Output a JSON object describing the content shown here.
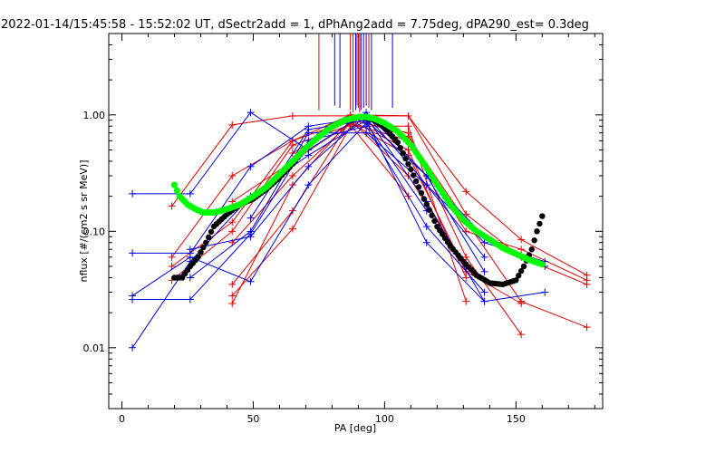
{
  "chart_data": {
    "type": "line",
    "title": "2022-01-14/15:45:58 - 15:52:02 UT, dSectr2add = 1, dPhAng2add = 7.75deg, dPA290_est=   0.3deg",
    "xlabel": "PA [deg]",
    "ylabel": "nflux [#/(cm2 s sr MeV)]",
    "xlim": [
      -5,
      183
    ],
    "ylim": [
      0.003,
      5.0
    ],
    "yscale": "log",
    "x_ticks": [
      0,
      50,
      100,
      150
    ],
    "x_tick_labels": [
      "0",
      "50",
      "100",
      "150"
    ],
    "y_ticks": [
      0.01,
      0.1,
      1.0
    ],
    "y_tick_labels": [
      "0.01",
      "0.10",
      "1.00"
    ],
    "grid": false,
    "colors": {
      "red": "#e00000",
      "blue": "#0000e0",
      "green": "#00ff00",
      "black": "#000000"
    },
    "series": [
      {
        "color": "red",
        "marker": "plus",
        "x": [
          19,
          42,
          65,
          87,
          109,
          131,
          152,
          177
        ],
        "y": [
          0.165,
          0.82,
          0.98,
          0.98,
          0.98,
          0.22,
          0.085,
          0.042
        ]
      },
      {
        "color": "red",
        "marker": "plus",
        "x": [
          19,
          42,
          65,
          87,
          109,
          131,
          152,
          177
        ],
        "y": [
          0.06,
          0.3,
          0.6,
          1.0,
          0.98,
          0.14,
          0.06,
          0.035
        ]
      },
      {
        "color": "red",
        "marker": "plus",
        "x": [
          42,
          65,
          87,
          109,
          131,
          152
        ],
        "y": [
          0.035,
          0.15,
          0.9,
          0.7,
          0.06,
          0.013
        ]
      },
      {
        "color": "red",
        "marker": "plus",
        "x": [
          42,
          65,
          87,
          109,
          131
        ],
        "y": [
          0.028,
          0.105,
          0.8,
          0.8,
          0.025
        ]
      },
      {
        "color": "red",
        "marker": "plus",
        "x": [
          42,
          65,
          87,
          109,
          131
        ],
        "y": [
          0.024,
          0.25,
          0.9,
          0.5,
          0.04
        ]
      },
      {
        "color": "red",
        "marker": "plus",
        "x": [
          65,
          87,
          109,
          152,
          177
        ],
        "y": [
          0.47,
          0.95,
          0.65,
          0.025,
          0.015
        ]
      },
      {
        "color": "red",
        "marker": "plus",
        "x": [
          42,
          65,
          87,
          109,
          131,
          152
        ],
        "y": [
          0.08,
          0.3,
          0.85,
          0.45,
          0.045,
          0.024
        ]
      },
      {
        "color": "red",
        "marker": "plus",
        "x": [
          19,
          42,
          65,
          87,
          109,
          131
        ],
        "y": [
          0.05,
          0.12,
          0.6,
          0.9,
          0.3,
          0.05
        ]
      },
      {
        "color": "red",
        "marker": "plus",
        "x": [
          42,
          65,
          87,
          109,
          131,
          152,
          177
        ],
        "y": [
          0.18,
          0.4,
          0.85,
          0.6,
          0.1,
          0.07,
          0.038
        ]
      },
      {
        "color": "red",
        "marker": "plus",
        "x": [
          19,
          42,
          65,
          87,
          109
        ],
        "y": [
          0.038,
          0.1,
          0.55,
          0.82,
          0.2
        ]
      },
      {
        "color": "blue",
        "marker": "plus",
        "x": [
          4,
          26,
          49,
          71,
          93,
          116,
          138,
          161
        ],
        "y": [
          0.21,
          0.21,
          1.05,
          0.5,
          1.05,
          0.3,
          0.09,
          0.05
        ]
      },
      {
        "color": "blue",
        "marker": "plus",
        "x": [
          4,
          26,
          49,
          71,
          93,
          116,
          138,
          161
        ],
        "y": [
          0.065,
          0.065,
          0.36,
          0.8,
          0.95,
          0.18,
          0.025,
          0.03
        ]
      },
      {
        "color": "blue",
        "marker": "plus",
        "x": [
          4,
          26,
          49,
          71,
          93,
          116,
          138
        ],
        "y": [
          0.026,
          0.026,
          0.095,
          0.6,
          0.8,
          0.11,
          0.03
        ]
      },
      {
        "color": "blue",
        "marker": "plus",
        "x": [
          4,
          26,
          49,
          71,
          93,
          116,
          138
        ],
        "y": [
          0.01,
          0.055,
          0.2,
          0.45,
          0.9,
          0.08,
          0.025
        ]
      },
      {
        "color": "blue",
        "marker": "plus",
        "x": [
          4,
          26,
          49,
          71,
          93,
          116
        ],
        "y": [
          0.028,
          0.06,
          0.037,
          0.25,
          0.85,
          0.15
        ]
      },
      {
        "color": "blue",
        "marker": "plus",
        "x": [
          26,
          49,
          71,
          93,
          116,
          138
        ],
        "y": [
          0.07,
          0.09,
          0.36,
          1.0,
          0.25,
          0.06
        ]
      },
      {
        "color": "blue",
        "marker": "plus",
        "x": [
          49,
          71,
          93,
          116,
          138
        ],
        "y": [
          0.13,
          0.75,
          0.9,
          0.3,
          0.045
        ]
      },
      {
        "color": "blue",
        "marker": "plus",
        "x": [
          26,
          49,
          71,
          93,
          116,
          138,
          161
        ],
        "y": [
          0.04,
          0.1,
          0.7,
          0.7,
          0.25,
          0.08,
          0.055
        ]
      }
    ],
    "green_curve": {
      "color": "green",
      "x": [
        20,
        22,
        25,
        28,
        31,
        35,
        40,
        45,
        50,
        55,
        60,
        65,
        70,
        75,
        80,
        85,
        90,
        93,
        96,
        100,
        105,
        110,
        115,
        120,
        125,
        130,
        135,
        140,
        145,
        150,
        155,
        160
      ],
      "y": [
        0.25,
        0.2,
        0.17,
        0.155,
        0.145,
        0.145,
        0.155,
        0.17,
        0.2,
        0.24,
        0.31,
        0.4,
        0.52,
        0.65,
        0.79,
        0.9,
        0.96,
        0.96,
        0.93,
        0.85,
        0.72,
        0.55,
        0.38,
        0.25,
        0.17,
        0.125,
        0.1,
        0.085,
        0.072,
        0.064,
        0.057,
        0.052
      ]
    },
    "black_curve": {
      "color": "black",
      "x": [
        20,
        23,
        26,
        29,
        32,
        35,
        40,
        45,
        50,
        55,
        60,
        65,
        70,
        75,
        80,
        85,
        90,
        93,
        96,
        100,
        105,
        110,
        115,
        120,
        125,
        130,
        135,
        140,
        145,
        150,
        153,
        156,
        158,
        160
      ],
      "y": [
        0.04,
        0.04,
        0.05,
        0.06,
        0.08,
        0.11,
        0.14,
        0.17,
        0.19,
        0.23,
        0.29,
        0.38,
        0.52,
        0.66,
        0.8,
        0.91,
        0.96,
        0.95,
        0.9,
        0.78,
        0.58,
        0.34,
        0.19,
        0.11,
        0.075,
        0.055,
        0.042,
        0.036,
        0.035,
        0.038,
        0.05,
        0.07,
        0.1,
        0.135
      ]
    },
    "vertical_ticks": {
      "top_y": 5.0,
      "lines": [
        {
          "x": 75,
          "color": "red",
          "bottom_y": 1.1
        },
        {
          "x": 81,
          "color": "blue",
          "bottom_y": 1.2
        },
        {
          "x": 83,
          "color": "blue",
          "bottom_y": 1.15
        },
        {
          "x": 87,
          "color": "red",
          "bottom_y": 1.1
        },
        {
          "x": 88,
          "color": "red",
          "bottom_y": 1.05
        },
        {
          "x": 89,
          "color": "blue",
          "bottom_y": 1.1
        },
        {
          "x": 89.5,
          "color": "red",
          "bottom_y": 1.2
        },
        {
          "x": 90,
          "color": "red",
          "bottom_y": 1.15
        },
        {
          "x": 90.5,
          "color": "red",
          "bottom_y": 1.05
        },
        {
          "x": 91,
          "color": "blue",
          "bottom_y": 1.1
        },
        {
          "x": 92,
          "color": "blue",
          "bottom_y": 1.15
        },
        {
          "x": 93,
          "color": "blue",
          "bottom_y": 1.2
        },
        {
          "x": 94,
          "color": "red",
          "bottom_y": 1.15
        },
        {
          "x": 95,
          "color": "blue",
          "bottom_y": 1.1
        },
        {
          "x": 103,
          "color": "blue",
          "bottom_y": 1.15
        }
      ]
    }
  }
}
